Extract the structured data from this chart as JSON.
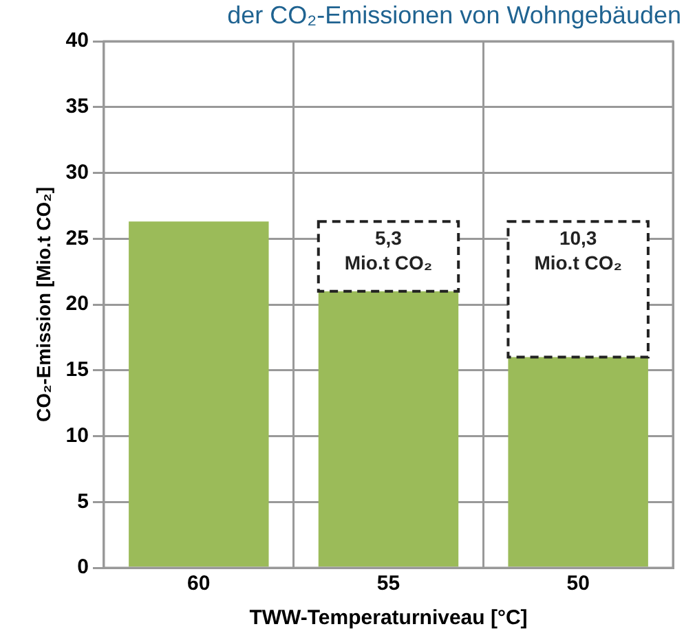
{
  "chart_data": {
    "type": "bar",
    "title": "der CO₂-Emissionen von Wohngebäuden",
    "xlabel": "TWW-Temperaturniveau [°C]",
    "ylabel": "CO₂-Emission [Mio.t CO₂]",
    "categories": [
      "60",
      "55",
      "50"
    ],
    "stacked": true,
    "series": [
      {
        "color": "#9bbb59",
        "values": [
          26.3,
          21,
          16
        ]
      },
      {
        "color": "#ffffff",
        "values": [
          null,
          5.3,
          10.3
        ],
        "line_style": "dashed",
        "value_labels": [
          null,
          "5,3\nMio.t CO₂",
          "10,3\nMio.t CO₂"
        ]
      }
    ],
    "ylim": [
      0,
      40
    ],
    "yticks": [
      0,
      5,
      10,
      15,
      20,
      25,
      30,
      35,
      40
    ],
    "grid": true,
    "legend": false
  }
}
